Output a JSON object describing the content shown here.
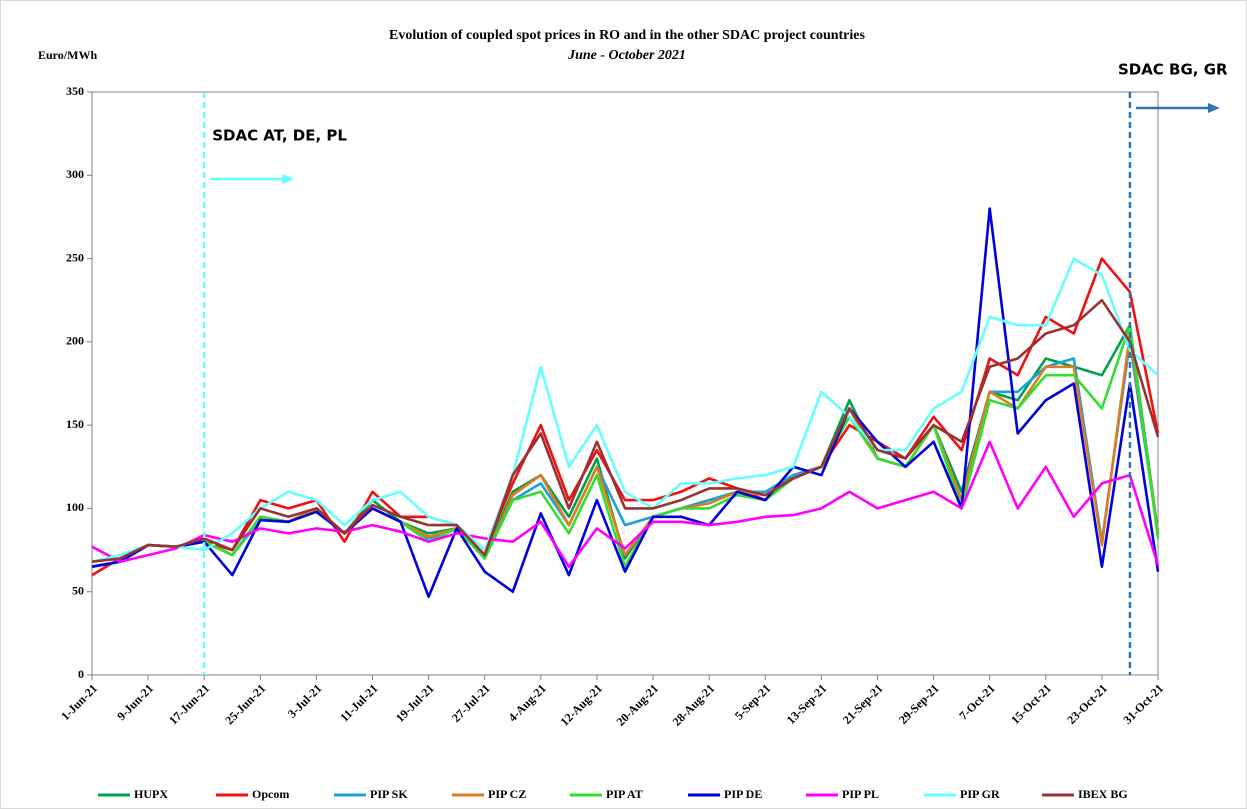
{
  "chart_data": {
    "type": "line",
    "title": "Evolution  of coupled spot prices in RO and in the other SDAC project countries",
    "subtitle": "June - October 2021",
    "y_label": "Euro/MWh",
    "x": [
      "1-Jun-21",
      "5-Jun-21",
      "9-Jun-21",
      "13-Jun-21",
      "17-Jun-21",
      "21-Jun-21",
      "25-Jun-21",
      "29-Jun-21",
      "3-Jul-21",
      "7-Jul-21",
      "11-Jul-21",
      "15-Jul-21",
      "19-Jul-21",
      "23-Jul-21",
      "27-Jul-21",
      "31-Jul-21",
      "4-Aug-21",
      "8-Aug-21",
      "12-Aug-21",
      "16-Aug-21",
      "20-Aug-21",
      "24-Aug-21",
      "28-Aug-21",
      "1-Sep-21",
      "5-Sep-21",
      "9-Sep-21",
      "13-Sep-21",
      "17-Sep-21",
      "21-Sep-21",
      "25-Sep-21",
      "29-Sep-21",
      "3-Oct-21",
      "7-Oct-21",
      "11-Oct-21",
      "15-Oct-21",
      "19-Oct-21",
      "23-Oct-21",
      "27-Oct-21",
      "31-Oct-21"
    ],
    "xlim": [
      "1-Jun-21",
      "31-Oct-21"
    ],
    "xticks": [
      "1-Jun-21",
      "9-Jun-21",
      "17-Jun-21",
      "25-Jun-21",
      "3-Jul-21",
      "11-Jul-21",
      "19-Jul-21",
      "27-Jul-21",
      "4-Aug-21",
      "12-Aug-21",
      "20-Aug-21",
      "28-Aug-21",
      "5-Sep-21",
      "13-Sep-21",
      "21-Sep-21",
      "29-Sep-21",
      "7-Oct-21",
      "15-Oct-21",
      "23-Oct-21",
      "31-Oct-21"
    ],
    "ylim": [
      0,
      350
    ],
    "yticks": [
      0,
      50,
      100,
      150,
      200,
      250,
      300,
      350
    ],
    "grid": false,
    "legend": "bottom",
    "annotations": [
      {
        "text": "SDAC AT, DE, PL",
        "x": "17-Jun-21",
        "color": "#66ffff"
      },
      {
        "text": "SDAC BG, GR",
        "x": "27-Oct-21",
        "color": "#2e75b6"
      }
    ],
    "series": [
      {
        "name": "HUPX",
        "color": "#00a050",
        "values": [
          65,
          68,
          78,
          77,
          80,
          72,
          95,
          92,
          100,
          85,
          105,
          92,
          85,
          88,
          72,
          110,
          120,
          95,
          130,
          70,
          95,
          100,
          105,
          110,
          105,
          120,
          125,
          165,
          130,
          125,
          150,
          110,
          170,
          165,
          190,
          185,
          180,
          210,
          85
        ]
      },
      {
        "name": "Opcom",
        "color": "#ee1111",
        "values": [
          60,
          70,
          78,
          77,
          80,
          75,
          105,
          100,
          105,
          80,
          110,
          95,
          95,
          90,
          75,
          115,
          150,
          105,
          135,
          105,
          105,
          110,
          118,
          112,
          105,
          120,
          125,
          150,
          140,
          130,
          155,
          135,
          190,
          180,
          215,
          205,
          250,
          230,
          145
        ]
      },
      {
        "name": "PIP SK",
        "color": "#1ea0dc",
        "values": [
          65,
          68,
          78,
          77,
          80,
          72,
          93,
          92,
          100,
          85,
          100,
          92,
          82,
          88,
          70,
          105,
          115,
          90,
          125,
          90,
          95,
          100,
          105,
          110,
          110,
          120,
          125,
          160,
          130,
          125,
          150,
          105,
          170,
          170,
          185,
          190,
          80,
          200,
          85
        ]
      },
      {
        "name": "PIP CZ",
        "color": "#e07b20",
        "values": [
          65,
          68,
          78,
          77,
          80,
          72,
          95,
          92,
          100,
          85,
          100,
          92,
          83,
          88,
          70,
          108,
          120,
          90,
          125,
          72,
          95,
          100,
          103,
          110,
          108,
          118,
          125,
          160,
          130,
          125,
          150,
          105,
          170,
          160,
          185,
          185,
          78,
          205,
          85
        ]
      },
      {
        "name": "PIP AT",
        "color": "#33dd33",
        "values": [
          65,
          68,
          78,
          77,
          80,
          72,
          95,
          92,
          98,
          85,
          100,
          92,
          80,
          88,
          70,
          105,
          110,
          85,
          120,
          65,
          95,
          100,
          100,
          108,
          105,
          118,
          125,
          155,
          130,
          125,
          150,
          100,
          165,
          160,
          180,
          180,
          160,
          210,
          82
        ]
      },
      {
        "name": "PIP DE",
        "color": "#0000dd",
        "values": [
          65,
          68,
          78,
          77,
          80,
          60,
          93,
          92,
          98,
          85,
          100,
          92,
          47,
          88,
          62,
          50,
          97,
          60,
          105,
          62,
          95,
          95,
          90,
          110,
          105,
          125,
          120,
          160,
          140,
          125,
          140,
          100,
          280,
          145,
          165,
          175,
          65,
          175,
          62
        ]
      },
      {
        "name": "PIP PL",
        "color": "#ff00ff",
        "values": [
          77,
          68,
          72,
          76,
          84,
          80,
          88,
          85,
          88,
          86,
          90,
          86,
          80,
          85,
          82,
          80,
          92,
          65,
          88,
          76,
          92,
          92,
          90,
          92,
          95,
          96,
          100,
          110,
          100,
          105,
          110,
          100,
          140,
          100,
          125,
          95,
          115,
          120,
          66
        ]
      },
      {
        "name": "PIP GR",
        "color": "#66ffff",
        "values": [
          68,
          72,
          78,
          77,
          75,
          85,
          100,
          110,
          105,
          90,
          105,
          110,
          95,
          90,
          75,
          120,
          185,
          125,
          150,
          110,
          100,
          115,
          115,
          118,
          120,
          125,
          170,
          155,
          135,
          135,
          160,
          170,
          215,
          210,
          210,
          250,
          240,
          195,
          180
        ]
      },
      {
        "name": "IBEX BG",
        "color": "#993333",
        "values": [
          68,
          70,
          78,
          77,
          82,
          75,
          100,
          95,
          100,
          85,
          102,
          95,
          90,
          90,
          72,
          120,
          145,
          100,
          140,
          100,
          100,
          105,
          112,
          112,
          108,
          118,
          125,
          160,
          135,
          130,
          150,
          140,
          185,
          190,
          205,
          210,
          225,
          200,
          143
        ]
      }
    ]
  }
}
